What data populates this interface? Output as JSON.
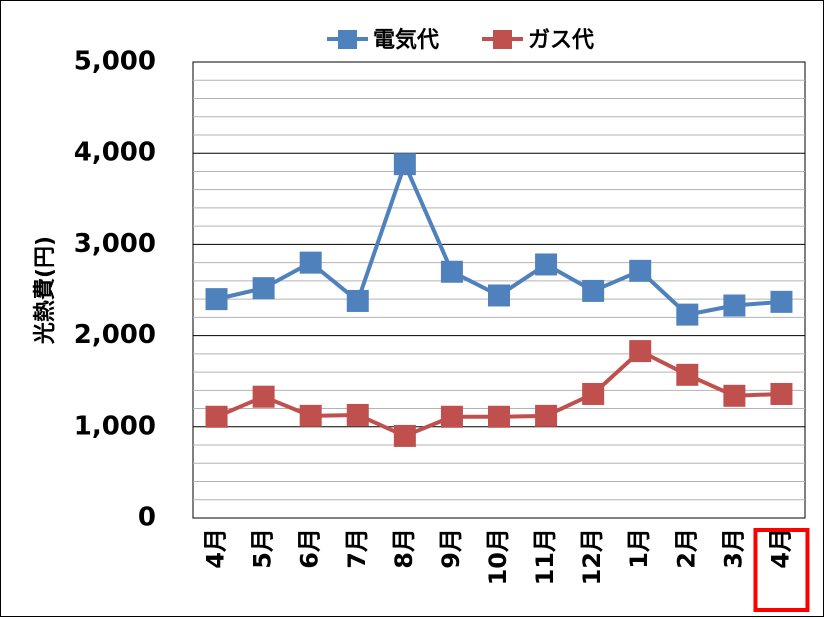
{
  "chart_data": {
    "type": "line",
    "ylabel": "光熱費(円)",
    "xlabel": "",
    "ylim": [
      0,
      5000
    ],
    "y_ticks": [
      "0",
      "1,000",
      "2,000",
      "3,000",
      "4,000",
      "5,000"
    ],
    "categories": [
      "4月",
      "5月",
      "6月",
      "7月",
      "8月",
      "9月",
      "10月",
      "11月",
      "12月",
      "1月",
      "2月",
      "3月",
      "4月"
    ],
    "highlighted_category_index": 12,
    "grid": true,
    "legend": "top",
    "series": [
      {
        "name": "電気代",
        "color": "#4F81BD",
        "values": [
          2400,
          2520,
          2800,
          2380,
          3880,
          2700,
          2440,
          2780,
          2490,
          2710,
          2230,
          2330,
          2370
        ]
      },
      {
        "name": "ガス代",
        "color": "#C0504D",
        "values": [
          1110,
          1330,
          1120,
          1130,
          900,
          1110,
          1110,
          1120,
          1360,
          1830,
          1570,
          1340,
          1360
        ]
      }
    ],
    "highlight_color": "#FF0000"
  }
}
